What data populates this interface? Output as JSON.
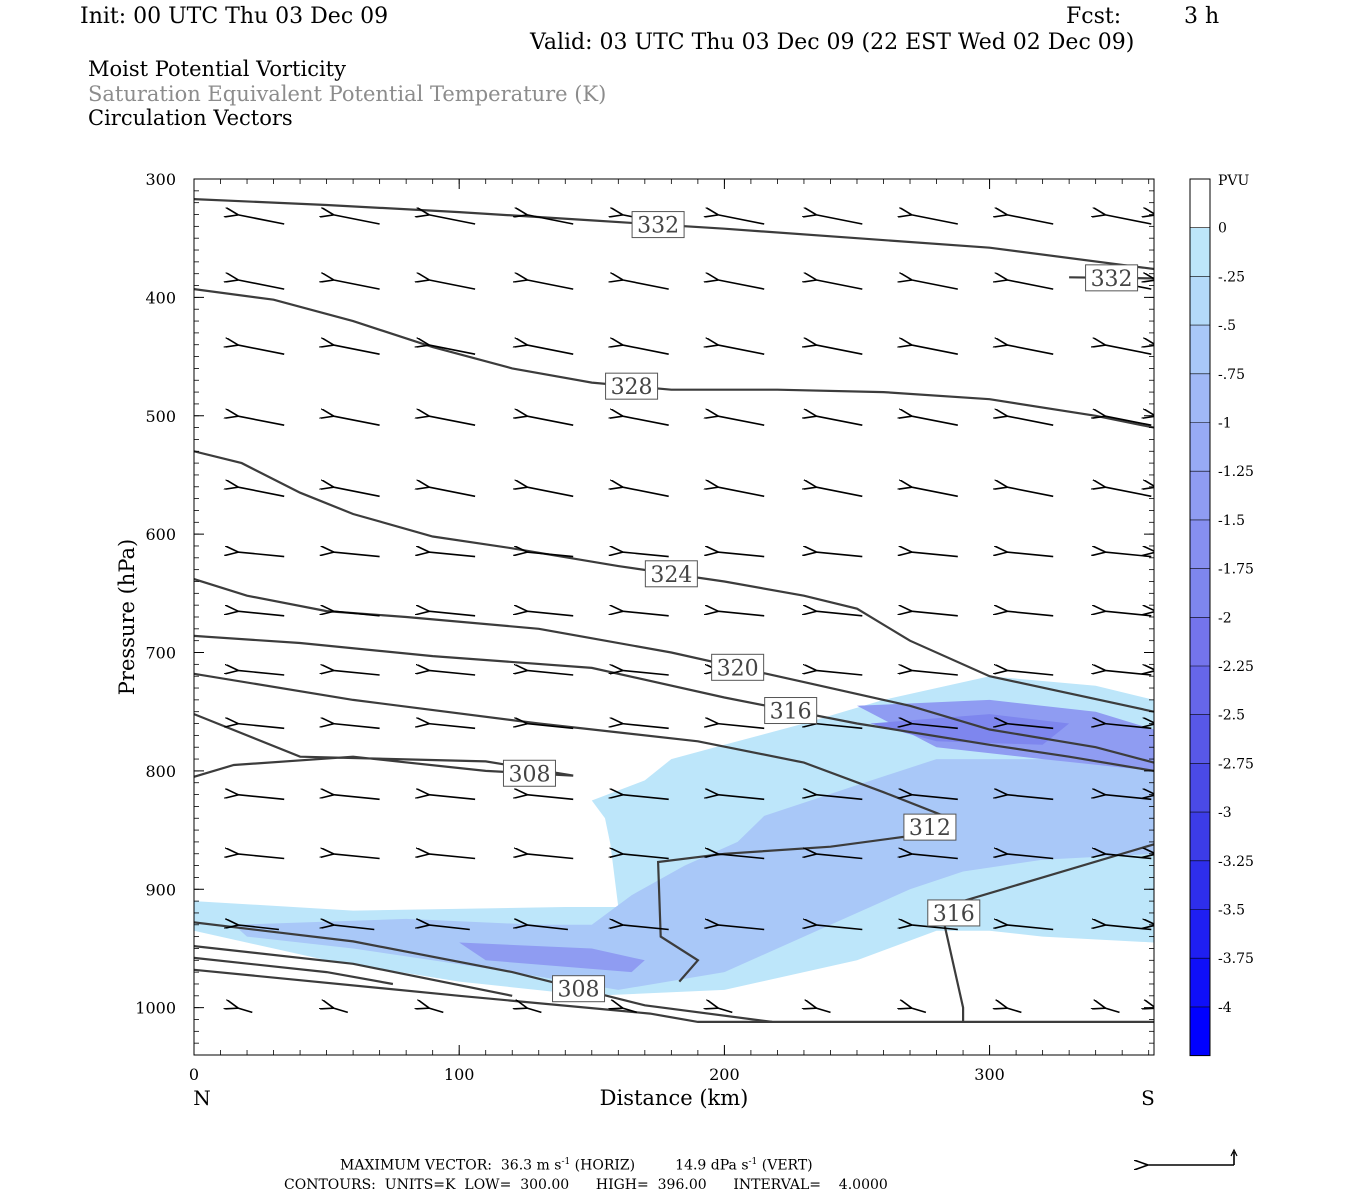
{
  "header": {
    "init": "Init: 00 UTC Thu 03 Dec 09",
    "fcst_label": "Fcst:",
    "fcst_value": "3 h",
    "valid": "Valid: 03 UTC Thu 03 Dec 09 (22 EST Wed 02 Dec 09)"
  },
  "fields": {
    "field1": "Moist Potential Vorticity",
    "field2": "Saturation Equivalent Potential Temperature (K)",
    "field3": "Circulation Vectors"
  },
  "footer": {
    "max_vector_label": "MAXIMUM VECTOR:",
    "max_vector_horiz": "36.3 m s",
    "horiz_unit": "(HORIZ)",
    "max_vector_vert": "14.9 dPa s",
    "vert_unit": "(VERT)",
    "exp": "-1",
    "contours_line": "CONTOURS:  UNITS=K  LOW=  300.00      HIGH=  396.00      INTERVAL=    4.0000"
  },
  "colors": {
    "contour": "#3c3c3c",
    "pv_fill_light": "#bde6fa",
    "pv_fill_mid": "#a9c8f8",
    "pv_fill_dark": "#8f9cf2",
    "pv_fill_darkest": "#7e86ee"
  },
  "chart_data": {
    "type": "cross-section",
    "xlabel": "Distance (km)",
    "ylabel": "Pressure (hPa)",
    "xlim": [
      0,
      362
    ],
    "ylim": [
      1040,
      300
    ],
    "x_ticks": [
      0,
      100,
      200,
      300
    ],
    "y_ticks": [
      300,
      400,
      500,
      600,
      700,
      800,
      900,
      1000
    ],
    "x_endpoints": {
      "left": "N",
      "right": "S"
    },
    "colorbar": {
      "title": "PVU",
      "levels": [
        "0",
        "-.25",
        "-.5",
        "-.75",
        "-1",
        "-1.25",
        "-1.5",
        "-1.75",
        "-2",
        "-2.25",
        "-2.5",
        "-2.75",
        "-3",
        "-3.25",
        "-3.5",
        "-3.75",
        "-4"
      ],
      "colors": [
        "#ffffff",
        "#bde6fa",
        "#b4daf9",
        "#a9c8f8",
        "#a0b8f6",
        "#97aaf5",
        "#8f9cf2",
        "#868ff0",
        "#7e86ee",
        "#7474ec",
        "#6666ea",
        "#5858e8",
        "#4a4ae6",
        "#3c3ce8",
        "#2e2eec",
        "#1f1ff2",
        "#0f0ff8",
        "#0000ff"
      ]
    },
    "theta_contours": [
      {
        "label": "332",
        "points": [
          [
            0,
            317
          ],
          [
            50,
            322
          ],
          [
            100,
            328
          ],
          [
            150,
            335
          ],
          [
            200,
            342
          ],
          [
            250,
            350
          ],
          [
            300,
            358
          ],
          [
            362,
            376
          ]
        ]
      },
      {
        "label": "332",
        "points": [
          [
            330,
            383
          ],
          [
            362,
            384
          ]
        ]
      },
      {
        "label": "328",
        "points": [
          [
            0,
            393
          ],
          [
            30,
            402
          ],
          [
            60,
            420
          ],
          [
            90,
            442
          ],
          [
            120,
            460
          ],
          [
            150,
            472
          ],
          [
            180,
            478
          ],
          [
            220,
            478
          ],
          [
            260,
            480
          ],
          [
            300,
            486
          ],
          [
            340,
            500
          ],
          [
            362,
            510
          ]
        ]
      },
      {
        "label": "324",
        "points": [
          [
            0,
            530
          ],
          [
            18,
            540
          ],
          [
            40,
            565
          ],
          [
            60,
            583
          ],
          [
            90,
            602
          ],
          [
            120,
            612
          ],
          [
            160,
            627
          ],
          [
            200,
            640
          ],
          [
            230,
            652
          ],
          [
            250,
            663
          ],
          [
            270,
            690
          ],
          [
            300,
            720
          ],
          [
            362,
            750
          ]
        ]
      },
      {
        "label": "320",
        "points": [
          [
            0,
            638
          ],
          [
            20,
            652
          ],
          [
            50,
            665
          ],
          [
            80,
            670
          ],
          [
            130,
            680
          ],
          [
            180,
            700
          ],
          [
            230,
            725
          ],
          [
            270,
            745
          ],
          [
            300,
            765
          ],
          [
            340,
            780
          ],
          [
            362,
            793
          ]
        ]
      },
      {
        "label": "316",
        "points": [
          [
            0,
            686
          ],
          [
            40,
            692
          ],
          [
            90,
            703
          ],
          [
            150,
            713
          ],
          [
            200,
            738
          ],
          [
            250,
            760
          ],
          [
            300,
            778
          ],
          [
            330,
            788
          ],
          [
            362,
            800
          ]
        ]
      },
      {
        "label": "312",
        "points": [
          [
            0,
            718
          ],
          [
            60,
            740
          ],
          [
            130,
            760
          ],
          [
            190,
            775
          ],
          [
            230,
            793
          ],
          [
            260,
            818
          ],
          [
            285,
            840
          ],
          [
            270,
            855
          ],
          [
            240,
            864
          ],
          [
            200,
            870
          ],
          [
            175,
            877
          ],
          [
            176,
            940
          ],
          [
            190,
            960
          ],
          [
            183,
            978
          ]
        ]
      },
      {
        "label": "308",
        "points": [
          [
            0,
            752
          ],
          [
            40,
            788
          ],
          [
            110,
            792
          ],
          [
            143,
            804
          ],
          [
            110,
            800
          ],
          [
            60,
            788
          ],
          [
            15,
            795
          ],
          [
            0,
            805
          ]
        ]
      },
      {
        "label": "316",
        "points": [
          [
            362,
            862
          ],
          [
            320,
            890
          ],
          [
            290,
            910
          ],
          [
            283,
            930
          ],
          [
            290,
            1000
          ],
          [
            290,
            1012
          ]
        ]
      },
      {
        "label": "308",
        "points": [
          [
            0,
            928
          ],
          [
            60,
            944
          ],
          [
            120,
            970
          ],
          [
            170,
            998
          ],
          [
            218,
            1012
          ]
        ]
      },
      {
        "label": "",
        "points": [
          [
            0,
            948
          ],
          [
            60,
            963
          ],
          [
            120,
            990
          ]
        ]
      },
      {
        "label": "",
        "points": [
          [
            0,
            958
          ],
          [
            50,
            970
          ],
          [
            75,
            980
          ]
        ]
      },
      {
        "label": "",
        "points": [
          [
            0,
            968
          ],
          [
            100,
            990
          ],
          [
            172,
            1005
          ],
          [
            190,
            1012
          ],
          [
            362,
            1012
          ]
        ]
      }
    ],
    "pv_regions": [
      {
        "value": -0.25,
        "points": [
          [
            0,
            910
          ],
          [
            60,
            918
          ],
          [
            140,
            915
          ],
          [
            160,
            915
          ],
          [
            157,
            862
          ],
          [
            155,
            840
          ],
          [
            150,
            825
          ],
          [
            170,
            808
          ],
          [
            180,
            790
          ],
          [
            200,
            778
          ],
          [
            230,
            760
          ],
          [
            260,
            740
          ],
          [
            300,
            720
          ],
          [
            340,
            728
          ],
          [
            362,
            740
          ],
          [
            362,
            945
          ],
          [
            320,
            940
          ],
          [
            300,
            935
          ],
          [
            280,
            935
          ],
          [
            250,
            960
          ],
          [
            200,
            985
          ],
          [
            150,
            990
          ],
          [
            100,
            978
          ],
          [
            50,
            960
          ],
          [
            0,
            935
          ]
        ]
      },
      {
        "value": -0.75,
        "points": [
          [
            15,
            930
          ],
          [
            80,
            925
          ],
          [
            130,
            930
          ],
          [
            150,
            930
          ],
          [
            165,
            905
          ],
          [
            185,
            880
          ],
          [
            205,
            860
          ],
          [
            215,
            838
          ],
          [
            250,
            812
          ],
          [
            280,
            790
          ],
          [
            310,
            790
          ],
          [
            362,
            790
          ],
          [
            362,
            870
          ],
          [
            320,
            875
          ],
          [
            290,
            885
          ],
          [
            270,
            900
          ],
          [
            240,
            930
          ],
          [
            200,
            970
          ],
          [
            160,
            985
          ],
          [
            120,
            970
          ],
          [
            60,
            950
          ],
          [
            20,
            940
          ]
        ]
      },
      {
        "value": -1.5,
        "points": [
          [
            100,
            945
          ],
          [
            150,
            950
          ],
          [
            170,
            960
          ],
          [
            165,
            970
          ],
          [
            110,
            960
          ]
        ]
      },
      {
        "value": -1.5,
        "points": [
          [
            250,
            745
          ],
          [
            300,
            740
          ],
          [
            340,
            750
          ],
          [
            362,
            765
          ],
          [
            362,
            800
          ],
          [
            320,
            790
          ],
          [
            280,
            780
          ]
        ]
      },
      {
        "value": -2.0,
        "points": [
          [
            255,
            760
          ],
          [
            300,
            752
          ],
          [
            330,
            760
          ],
          [
            320,
            778
          ],
          [
            280,
            775
          ]
        ]
      }
    ],
    "vector_columns_km": [
      16,
      52,
      88,
      125,
      161,
      197,
      234,
      270,
      306,
      343,
      362
    ],
    "vector_rows_hpa": [
      330,
      385,
      440,
      500,
      560,
      615,
      665,
      715,
      760,
      820,
      870,
      930,
      1000
    ]
  }
}
